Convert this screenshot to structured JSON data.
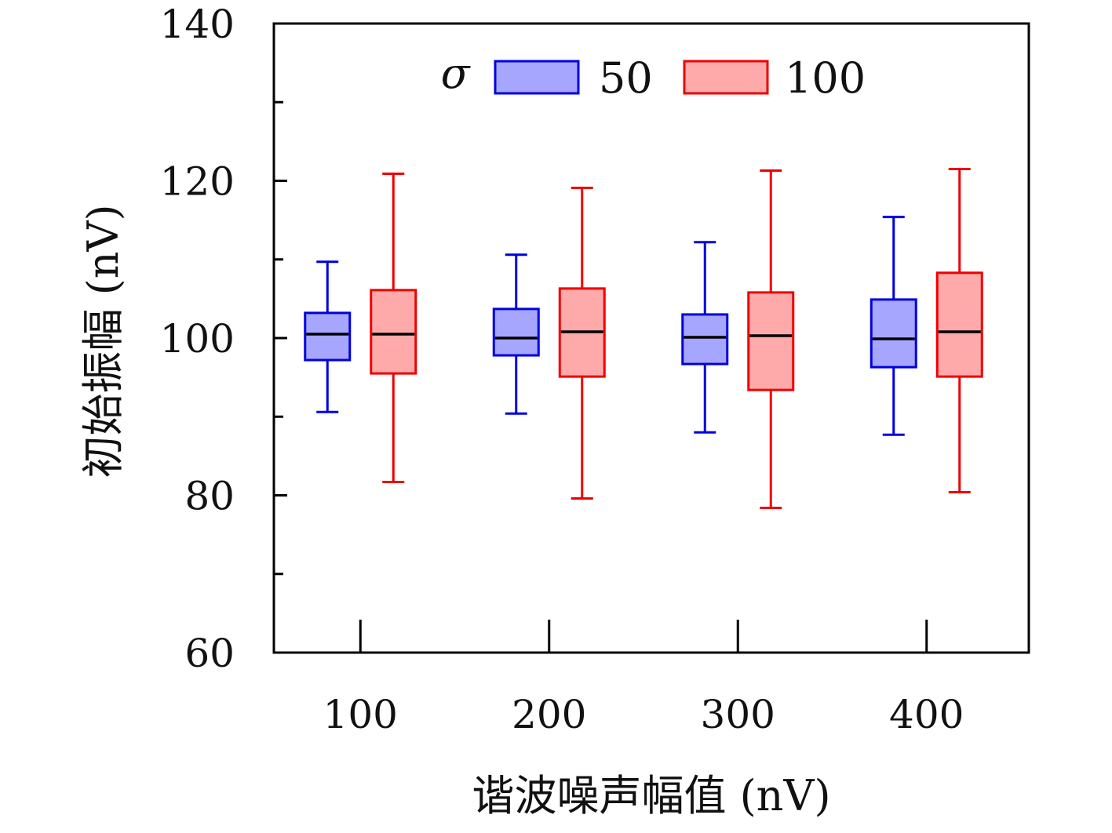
{
  "chart_data": {
    "type": "box",
    "xlabel": "谐波噪声幅值 (nV)",
    "ylabel": "初始振幅 (nV)",
    "ylim": [
      60,
      140
    ],
    "y_ticks": [
      "60",
      "80",
      "100",
      "120",
      "140"
    ],
    "y_minor_ticks": [
      70,
      90,
      110,
      130
    ],
    "categories": [
      "100",
      "200",
      "300",
      "400"
    ],
    "legend": {
      "title": "σ",
      "placement": "top-center",
      "horizontal": true
    },
    "grid": false,
    "series": [
      {
        "name": "50",
        "color": "#0000dd",
        "fill": "#a6a6ff",
        "boxes": [
          {
            "whisker_low": 90.6,
            "q1": 97.2,
            "median": 100.5,
            "q3": 103.2,
            "whisker_high": 109.7
          },
          {
            "whisker_low": 90.4,
            "q1": 97.8,
            "median": 100.0,
            "q3": 103.7,
            "whisker_high": 110.6
          },
          {
            "whisker_low": 88.0,
            "q1": 96.7,
            "median": 100.1,
            "q3": 103.0,
            "whisker_high": 112.2
          },
          {
            "whisker_low": 87.7,
            "q1": 96.3,
            "median": 99.9,
            "q3": 104.9,
            "whisker_high": 115.4
          }
        ]
      },
      {
        "name": "100",
        "color": "#ee0000",
        "fill": "#ffaaaa",
        "boxes": [
          {
            "whisker_low": 81.7,
            "q1": 95.5,
            "median": 100.5,
            "q3": 106.1,
            "whisker_high": 120.9
          },
          {
            "whisker_low": 79.6,
            "q1": 95.1,
            "median": 100.8,
            "q3": 106.3,
            "whisker_high": 119.1
          },
          {
            "whisker_low": 78.4,
            "q1": 93.4,
            "median": 100.3,
            "q3": 105.8,
            "whisker_high": 121.3
          },
          {
            "whisker_low": 80.4,
            "q1": 95.1,
            "median": 100.8,
            "q3": 108.3,
            "whisker_high": 121.5
          }
        ]
      }
    ]
  }
}
